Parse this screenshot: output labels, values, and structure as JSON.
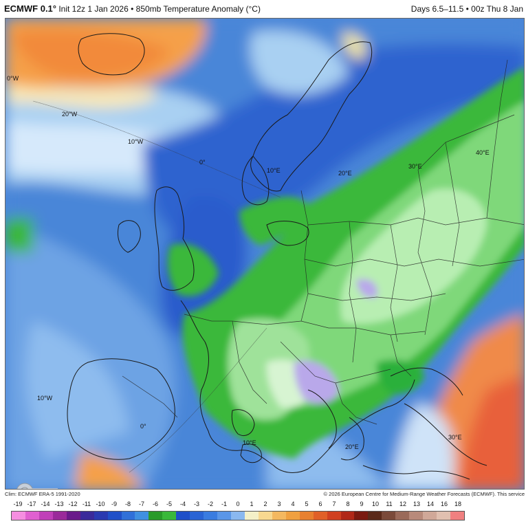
{
  "header": {
    "model": "ECMWF 0.1°",
    "init": "Init 12z 1 Jan 2026",
    "separator": "•",
    "product": "850mb Temperature Anomaly (°C)",
    "valid": "Days 6.5–11.5 • 00z Thu 8 Jan"
  },
  "map": {
    "lon_labels": [
      "0°W",
      "20°W",
      "10°W",
      "0°",
      "10°E",
      "20°E",
      "30°E",
      "40°E",
      "10°W",
      "0°",
      "10°E",
      "20°E",
      "30°E"
    ],
    "colors": {
      "ocean_base": "#4a86d8",
      "cold_deep": "#1f4fc8",
      "cold_light": "#a9d0f2",
      "near_zero": "#eaf4ff",
      "warm_orange": "#f5a04a",
      "warm_deep": "#e8603a",
      "green_dark": "#2bb03a",
      "green_light": "#a6e8a0",
      "lavender": "#b9a8ea",
      "border": "#1a1a1a"
    }
  },
  "watermark": {
    "text": "WeatherBELL"
  },
  "footer": {
    "clim": "Clim: ECMWF ERA-5 1991-2020",
    "copyright": "© 2026 European Centre for Medium-Range Weather Forecasts (ECMWF). This service"
  },
  "legend": {
    "ticks": [
      "-19",
      "-17",
      "-14",
      "-13",
      "-12",
      "-11",
      "-10",
      "-9",
      "-8",
      "-7",
      "-6",
      "-5",
      "-4",
      "-3",
      "-2",
      "-1",
      "0",
      "1",
      "2",
      "3",
      "4",
      "5",
      "6",
      "7",
      "8",
      "9",
      "10",
      "11",
      "12",
      "13",
      "14",
      "16",
      "18"
    ],
    "colors": [
      "#f58ee0",
      "#e060d0",
      "#c040b8",
      "#9a2a9a",
      "#6a1a8a",
      "#3a2a9a",
      "#2a3ab0",
      "#2050c8",
      "#3070d8",
      "#4090e0",
      "#2a9a2a",
      "#3ab83a",
      "#1f4fc8",
      "#2a64d4",
      "#3a7ce0",
      "#5a96e8",
      "#8ab8f0",
      "#f4f0c8",
      "#f8d890",
      "#f4b860",
      "#f0a040",
      "#e88030",
      "#e06028",
      "#d04020",
      "#b02818",
      "#7a1a10",
      "#5a2a1a",
      "#7a4a3a",
      "#9a6a5a",
      "#b88a7a",
      "#d0a898",
      "#e0c0b0",
      "#f08080"
    ]
  }
}
